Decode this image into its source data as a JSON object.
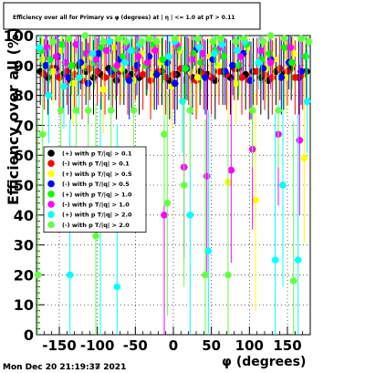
{
  "chart_data": {
    "type": "scatter",
    "title": "Efficiency over all for Primary vs φ (degrees) at | η | <= 1.0 at pT > 0.11",
    "xlabel": "φ (degrees)",
    "ylabel": "Efficiency over all (%)",
    "xlim": [
      -180,
      180
    ],
    "ylim": [
      0,
      100
    ],
    "x_ticks": [
      -150,
      -100,
      -50,
      0,
      50,
      100,
      150
    ],
    "y_ticks": [
      0,
      10,
      20,
      30,
      40,
      50,
      60,
      70,
      80,
      90,
      100
    ],
    "grid": true,
    "legend_position": "center-left",
    "series": [
      {
        "name": "(+) with p T/|q| > 0.1",
        "color": "#000000",
        "x": [
          -175,
          -165,
          -155,
          -145,
          -135,
          -125,
          -115,
          -105,
          -95,
          -85,
          -75,
          -65,
          -55,
          -45,
          -35,
          -25,
          -15,
          -5,
          5,
          15,
          25,
          35,
          45,
          55,
          65,
          75,
          85,
          95,
          105,
          115,
          125,
          135,
          145,
          155,
          165,
          175
        ],
        "y": [
          88,
          86,
          89,
          87,
          85,
          90,
          88,
          86,
          87,
          89,
          85,
          88,
          87,
          86,
          90,
          87,
          88,
          85,
          87,
          89,
          86,
          88,
          87,
          85,
          88,
          86,
          89,
          87,
          88,
          86,
          85,
          88,
          87,
          89,
          86,
          88
        ]
      },
      {
        "name": "(-) with p T/|q| > 0.1",
        "color": "#ff0000",
        "x": [
          -170,
          -160,
          -150,
          -140,
          -130,
          -120,
          -110,
          -100,
          -90,
          -80,
          -70,
          -60,
          -50,
          -40,
          -30,
          -20,
          -10,
          0,
          10,
          20,
          30,
          40,
          50,
          60,
          70,
          80,
          90,
          100,
          110,
          120,
          130,
          140,
          150,
          160,
          170
        ],
        "y": [
          87,
          89,
          86,
          88,
          87,
          85,
          89,
          88,
          86,
          87,
          88,
          86,
          89,
          87,
          85,
          88,
          86,
          87,
          89,
          88,
          85,
          87,
          86,
          88,
          87,
          89,
          86,
          85,
          88,
          87,
          86,
          89,
          88,
          86,
          87
        ]
      },
      {
        "name": "(+) with p T/|q| > 0.5",
        "color": "#ffff00",
        "x": [
          -172,
          -158,
          -148,
          -132,
          -118,
          -108,
          -92,
          -78,
          -68,
          -52,
          -42,
          -28,
          -18,
          -2,
          8,
          22,
          32,
          48,
          58,
          72,
          82,
          98,
          108,
          122,
          132,
          148,
          158,
          172
        ],
        "y": [
          92,
          88,
          95,
          84,
          90,
          93,
          82,
          96,
          89,
          85,
          94,
          87,
          91,
          83,
          95,
          88,
          86,
          93,
          90,
          51,
          84,
          96,
          45,
          89,
          92,
          86,
          94,
          59
        ]
      },
      {
        "name": "(-) with p T/|q| > 0.5",
        "color": "#0000ff",
        "x": [
          -168,
          -152,
          -138,
          -122,
          -112,
          -98,
          -82,
          -72,
          -58,
          -48,
          -32,
          -22,
          -8,
          2,
          18,
          28,
          42,
          52,
          68,
          78,
          92,
          102,
          118,
          128,
          142,
          152,
          168
        ],
        "y": [
          90,
          93,
          86,
          91,
          84,
          94,
          88,
          92,
          85,
          90,
          93,
          87,
          91,
          84,
          89,
          95,
          86,
          92,
          88,
          90,
          94,
          85,
          89,
          92,
          86,
          91,
          88
        ]
      },
      {
        "name": "(+) with p T/|q| > 1.0",
        "color": "#00ff00",
        "x": [
          -174,
          -162,
          -146,
          -134,
          -116,
          -104,
          -94,
          -76,
          -66,
          -54,
          -36,
          -26,
          -14,
          6,
          16,
          26,
          36,
          56,
          66,
          86,
          96,
          116,
          126,
          146,
          156,
          174
        ],
        "y": [
          95,
          92,
          97,
          90,
          94,
          91,
          96,
          89,
          93,
          95,
          90,
          97,
          92,
          96,
          89,
          94,
          91,
          95,
          93,
          90,
          97,
          92,
          94,
          96,
          91,
          93
        ]
      },
      {
        "name": "(-) with p T/|q| > 1.0",
        "color": "#ff00ff",
        "x": [
          -166,
          -154,
          -142,
          -128,
          -114,
          -102,
          -88,
          -74,
          -62,
          -46,
          -34,
          -24,
          -12,
          4,
          14,
          24,
          38,
          44,
          62,
          76,
          88,
          104,
          114,
          128,
          138,
          154,
          166
        ],
        "y": [
          96,
          93,
          91,
          97,
          94,
          92,
          95,
          90,
          96,
          93,
          91,
          95,
          40,
          97,
          56,
          92,
          94,
          53,
          96,
          55,
          93,
          62,
          95,
          91,
          67,
          96,
          65
        ]
      },
      {
        "name": "(+) with p T/|q| > 2.0",
        "color": "#00ffff",
        "x": [
          -176,
          -164,
          -144,
          -136,
          -124,
          -106,
          -96,
          -84,
          -74,
          -64,
          -56,
          -44,
          -6,
          2,
          12,
          22,
          34,
          46,
          54,
          64,
          84,
          94,
          112,
          134,
          144,
          164,
          176
        ],
        "y": [
          96,
          80,
          83,
          20,
          86,
          94,
          37,
          98,
          16,
          91,
          95,
          97,
          93,
          98,
          78,
          40,
          96,
          28,
          94,
          97,
          95,
          98,
          91,
          25,
          50,
          25,
          78
        ]
      },
      {
        "name": "(-) with p T/|q| > 2.0",
        "color": "#66ff44",
        "x": [
          -178,
          -172,
          -158,
          -148,
          -138,
          -128,
          -116,
          -112,
          -102,
          -92,
          -82,
          -72,
          -62,
          -52,
          -42,
          -32,
          -22,
          -12,
          -8,
          2,
          14,
          22,
          32,
          42,
          52,
          62,
          72,
          82,
          92,
          104,
          118,
          128,
          138,
          146,
          158,
          168,
          178
        ],
        "y": [
          20,
          67,
          98,
          75,
          99,
          75,
          100,
          75,
          33,
          98,
          75,
          99,
          98,
          75,
          98,
          99,
          98,
          67,
          44,
          99,
          50,
          75,
          99,
          20,
          98,
          99,
          20,
          98,
          99,
          75,
          98,
          100,
          75,
          99,
          18,
          99,
          98
        ]
      }
    ]
  },
  "footer": {
    "date_a": "Mon Dec 20 21:19:37 2021",
    "date_b": "Mon Dec 20 21:19:38 2021"
  }
}
